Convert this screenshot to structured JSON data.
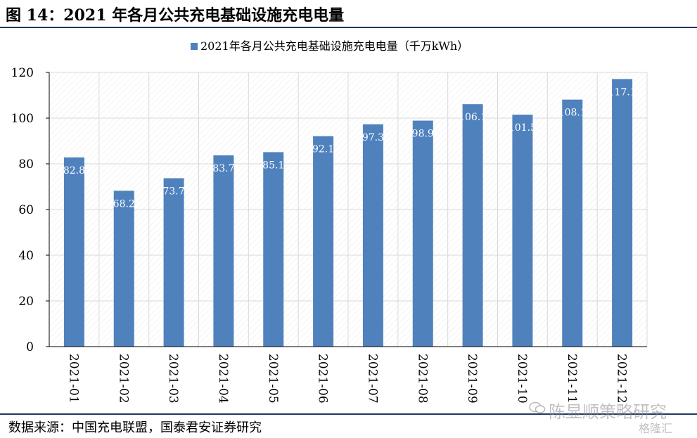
{
  "figure_title": "图 14：2021 年各月公共充电基础设施充电电量",
  "source_note": "数据来源：中国充电联盟，国泰君安证券研究",
  "watermark_text": "陈显顺策略研究",
  "watermark_logo": "格隆汇",
  "colors": {
    "bar": "#4f81bd",
    "rule": "#1f3864",
    "grid": "#d9d9d9"
  },
  "chart_data": {
    "type": "bar",
    "title": "",
    "legend_position": "top-center",
    "grid": true,
    "ylim": [
      0,
      120
    ],
    "yticks": [
      0,
      20,
      40,
      60,
      80,
      100,
      120
    ],
    "categories": [
      "2021-01",
      "2021-02",
      "2021-03",
      "2021-04",
      "2021-05",
      "2021-06",
      "2021-07",
      "2021-08",
      "2021-09",
      "2021-10",
      "2021-11",
      "2021-12"
    ],
    "series": [
      {
        "name": "2021年各月公共充电基础设施充电电量（千万kWh）",
        "values": [
          82.8,
          68.2,
          73.7,
          83.7,
          85.1,
          92.1,
          97.3,
          98.9,
          106.1,
          101.5,
          108.1,
          117.1
        ]
      }
    ]
  }
}
